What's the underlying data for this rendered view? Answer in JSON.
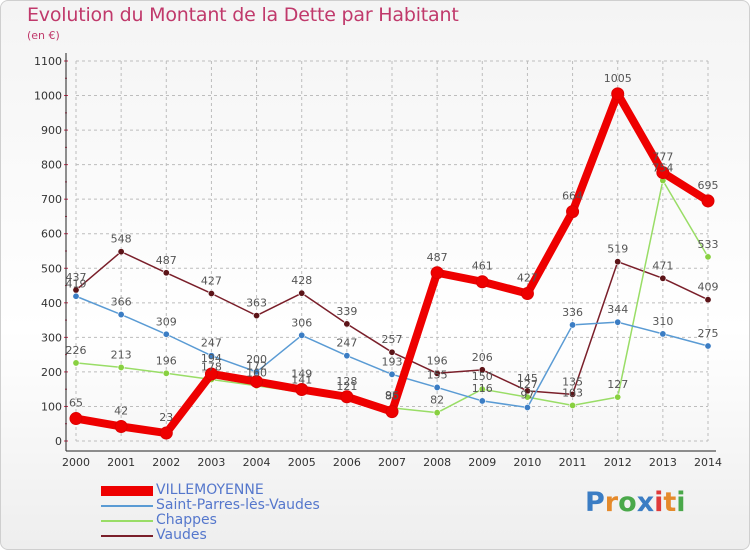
{
  "title": "Evolution du Montant de la Dette par Habitant",
  "subtitle": "(en €)",
  "logo": {
    "text": "Proxiti",
    "colors": [
      "#3b7dc4",
      "#e58a2b",
      "#4aa84a",
      "#3b7dc4",
      "#e03a3a",
      "#e58a2b",
      "#4aa84a"
    ]
  },
  "chart_data": {
    "type": "line",
    "x": [
      "2000",
      "2001",
      "2002",
      "2003",
      "2004",
      "2005",
      "2006",
      "2007",
      "2008",
      "2009",
      "2010",
      "2011",
      "2012",
      "2013",
      "2014"
    ],
    "ylim": [
      0,
      1100
    ],
    "yticks": [
      "0",
      "100",
      "200",
      "300",
      "400",
      "500",
      "600",
      "700",
      "800",
      "900",
      "1000",
      "1100"
    ],
    "grid": true,
    "legend": "bottom-left",
    "series": [
      {
        "name": "Vaudes",
        "color": "#7a1f2a",
        "marker": "#5c1418",
        "values": [
          437,
          548,
          487,
          427,
          363,
          428,
          339,
          257,
          196,
          206,
          145,
          135,
          519,
          471,
          409
        ],
        "labels": [
          "437",
          "548",
          "487",
          "427",
          "363",
          "428",
          "339",
          "257",
          "196",
          "206",
          "145",
          "135",
          "519",
          "471",
          "409"
        ]
      },
      {
        "name": "Chappes",
        "color": "#99dd66",
        "marker": "#88d040",
        "values": [
          226,
          213,
          196,
          178,
          160,
          141,
          121,
          96,
          82,
          150,
          127,
          103,
          127,
          754,
          533
        ],
        "labels": [
          "226",
          "213",
          "196",
          "178",
          "160",
          "141",
          "121",
          "96",
          "82",
          "150",
          "127",
          "103",
          "127",
          "754",
          "533"
        ]
      },
      {
        "name": "Saint-Parres-lès-Vaudes",
        "color": "#5a9bd4",
        "marker": "#3b7dc4",
        "values": [
          419,
          366,
          309,
          247,
          200,
          306,
          247,
          193,
          155,
          116,
          97,
          336,
          344,
          310,
          275
        ],
        "labels": [
          "419",
          "366",
          "309",
          "247",
          "200",
          "306",
          "247",
          "193",
          "155",
          "116",
          "97",
          "336",
          "344",
          "310",
          "275"
        ]
      },
      {
        "name": "VILLEMOYENNE",
        "color": "#ee0000",
        "marker": "#ee0000",
        "values": [
          65,
          42,
          23,
          194,
          172,
          149,
          128,
          85,
          487,
          461,
          427,
          664,
          1005,
          777,
          695
        ],
        "labels": [
          "65",
          "42",
          "23",
          "194",
          "172",
          "149",
          "128",
          "85",
          "487",
          "461",
          "427",
          "664",
          "1005",
          "777",
          "695"
        ]
      }
    ]
  },
  "legend_items": [
    {
      "name": "VILLEMOYENNE",
      "color": "#ee0000",
      "thickness": 10
    },
    {
      "name": "Saint-Parres-lès-Vaudes",
      "color": "#5a9bd4",
      "thickness": 2
    },
    {
      "name": "Chappes",
      "color": "#99dd66",
      "thickness": 2
    },
    {
      "name": "Vaudes",
      "color": "#7a1f2a",
      "thickness": 2
    }
  ]
}
